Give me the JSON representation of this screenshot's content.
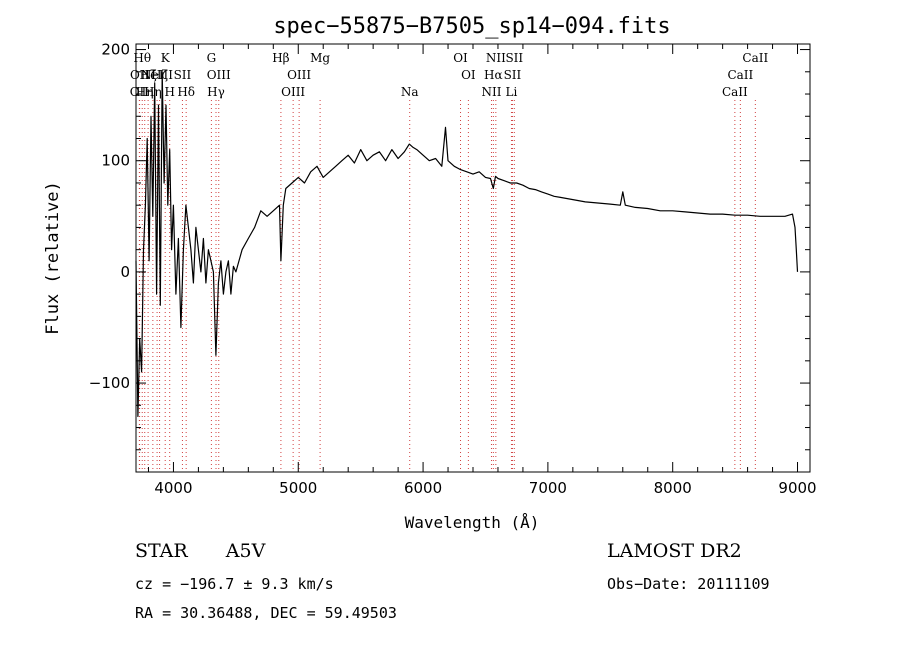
{
  "chart_data": {
    "type": "line",
    "title": "spec−55875−B7505_sp14−094.fits",
    "xlabel": "Wavelength (Å)",
    "ylabel": "Flux (relative)",
    "xlim": [
      3700,
      9100
    ],
    "ylim": [
      -180,
      205
    ],
    "x_ticks": [
      4000,
      5000,
      6000,
      7000,
      8000,
      9000
    ],
    "x_tick_labels": [
      "4000",
      "5000",
      "6000",
      "7000",
      "8000",
      "9000"
    ],
    "y_ticks": [
      -100,
      0,
      100,
      200
    ],
    "y_tick_labels": [
      "−100",
      "0",
      "100",
      "200"
    ],
    "grid": false,
    "line_color": "#000000",
    "marker_line_color": "#d04040",
    "series": [
      {
        "x": [
          3700,
          3715,
          3730,
          3745,
          3760,
          3775,
          3790,
          3805,
          3820,
          3835,
          3850,
          3865,
          3880,
          3895,
          3910,
          3925,
          3940,
          3955,
          3970,
          3985,
          4000,
          4020,
          4040,
          4060,
          4080,
          4100,
          4120,
          4140,
          4160,
          4180,
          4200,
          4220,
          4240,
          4260,
          4280,
          4300,
          4320,
          4340,
          4360,
          4380,
          4400,
          4420,
          4440,
          4460,
          4480,
          4500,
          4550,
          4600,
          4650,
          4700,
          4750,
          4800,
          4850,
          4861,
          4880,
          4900,
          4950,
          5000,
          5050,
          5100,
          5150,
          5200,
          5250,
          5300,
          5350,
          5400,
          5450,
          5500,
          5550,
          5600,
          5650,
          5700,
          5750,
          5800,
          5850,
          5890,
          5920,
          5950,
          6000,
          6050,
          6100,
          6150,
          6180,
          6200,
          6250,
          6300,
          6350,
          6400,
          6450,
          6500,
          6540,
          6563,
          6580,
          6600,
          6650,
          6700,
          6750,
          6800,
          6850,
          6900,
          6950,
          7000,
          7050,
          7100,
          7200,
          7300,
          7400,
          7500,
          7580,
          7600,
          7620,
          7700,
          7800,
          7900,
          8000,
          8100,
          8200,
          8300,
          8400,
          8500,
          8600,
          8700,
          8800,
          8900,
          8960,
          8980,
          8990,
          9000
        ],
        "y": [
          10,
          -130,
          -60,
          -90,
          20,
          60,
          120,
          10,
          140,
          50,
          170,
          -20,
          150,
          -30,
          180,
          80,
          150,
          60,
          110,
          20,
          60,
          -20,
          30,
          -50,
          20,
          60,
          40,
          20,
          -10,
          40,
          20,
          0,
          30,
          -10,
          20,
          10,
          0,
          -75,
          -10,
          10,
          -20,
          0,
          10,
          -20,
          5,
          0,
          20,
          30,
          40,
          55,
          50,
          55,
          60,
          10,
          60,
          75,
          80,
          85,
          80,
          90,
          95,
          85,
          90,
          95,
          100,
          105,
          98,
          110,
          100,
          105,
          108,
          100,
          110,
          102,
          108,
          115,
          112,
          110,
          105,
          100,
          102,
          95,
          130,
          100,
          95,
          92,
          90,
          88,
          90,
          85,
          84,
          75,
          86,
          84,
          82,
          80,
          80,
          78,
          75,
          74,
          72,
          70,
          68,
          67,
          65,
          63,
          62,
          61,
          60,
          72,
          60,
          58,
          57,
          55,
          55,
          54,
          53,
          52,
          52,
          51,
          51,
          50,
          50,
          50,
          52,
          40,
          20,
          0
        ]
      }
    ],
    "line_markers": [
      {
        "wavelength": 3727,
        "label": "OII",
        "row": 3
      },
      {
        "wavelength": 3729,
        "label": "OII",
        "row": 2
      },
      {
        "wavelength": 3750,
        "label": "Hθ",
        "row": 1
      },
      {
        "wavelength": 3770,
        "label": "Hη",
        "row": 3
      },
      {
        "wavelength": 3797,
        "label": "Hζ",
        "row": 2
      },
      {
        "wavelength": 3835,
        "label": "Hη",
        "row": 3
      },
      {
        "wavelength": 3869,
        "label": "NeIII",
        "row": 2
      },
      {
        "wavelength": 3889,
        "label": "Hζ",
        "row": 2
      },
      {
        "wavelength": 3934,
        "label": "K",
        "row": 1
      },
      {
        "wavelength": 3970,
        "label": "H",
        "row": 3
      },
      {
        "wavelength": 4072,
        "label": "SII",
        "row": 2
      },
      {
        "wavelength": 4102,
        "label": "Hδ",
        "row": 3
      },
      {
        "wavelength": 4304,
        "label": "G",
        "row": 1
      },
      {
        "wavelength": 4341,
        "label": "Hγ",
        "row": 3
      },
      {
        "wavelength": 4363,
        "label": "OIII",
        "row": 2
      },
      {
        "wavelength": 4861,
        "label": "Hβ",
        "row": 1
      },
      {
        "wavelength": 4959,
        "label": "OIII",
        "row": 3
      },
      {
        "wavelength": 5007,
        "label": "OIII",
        "row": 2
      },
      {
        "wavelength": 5175,
        "label": "Mg",
        "row": 1
      },
      {
        "wavelength": 5893,
        "label": "Na",
        "row": 3
      },
      {
        "wavelength": 6300,
        "label": "OI",
        "row": 1
      },
      {
        "wavelength": 6363,
        "label": "OI",
        "row": 2
      },
      {
        "wavelength": 6548,
        "label": "NII",
        "row": 3
      },
      {
        "wavelength": 6563,
        "label": "Hα",
        "row": 2
      },
      {
        "wavelength": 6583,
        "label": "NII",
        "row": 1
      },
      {
        "wavelength": 6708,
        "label": "Li",
        "row": 3
      },
      {
        "wavelength": 6716,
        "label": "SII",
        "row": 2
      },
      {
        "wavelength": 6731,
        "label": "SII",
        "row": 1
      },
      {
        "wavelength": 8498,
        "label": "CaII",
        "row": 3
      },
      {
        "wavelength": 8542,
        "label": "CaII",
        "row": 2
      },
      {
        "wavelength": 8662,
        "label": "CaII",
        "row": 1
      }
    ]
  },
  "info": {
    "object_class": "STAR",
    "subclass": "A5V",
    "survey": "LAMOST DR2",
    "cz": "cz = −196.7 ± 9.3 km/s",
    "obs_date": "Obs−Date: 20111109",
    "coords": "RA =  30.36488, DEC =  59.49503"
  }
}
